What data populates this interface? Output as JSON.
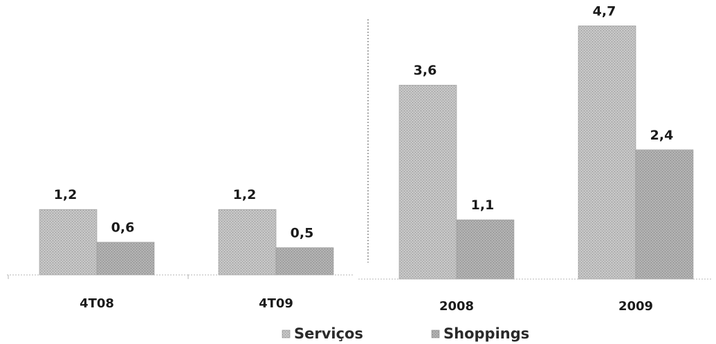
{
  "chart_data": {
    "type": "bar",
    "categories": [
      "4T08",
      "4T09",
      "2008",
      "2009"
    ],
    "series": [
      {
        "name": "Serviços",
        "values": [
          1.2,
          1.2,
          3.6,
          4.7
        ],
        "labels": [
          "1,2",
          "1,2",
          "3,6",
          "4,7"
        ],
        "color": "#bdbdbd"
      },
      {
        "name": "Shoppings",
        "values": [
          0.6,
          0.5,
          1.1,
          2.4
        ],
        "labels": [
          "0,6",
          "0,5",
          "1,1",
          "2,4"
        ],
        "color": "#a8a8a8"
      }
    ],
    "legend_position": "bottom",
    "grid": false,
    "note": "Two panels: quarterly (4T08, 4T09) and annual (2008, 2009), separated by a dotted vertical line"
  }
}
